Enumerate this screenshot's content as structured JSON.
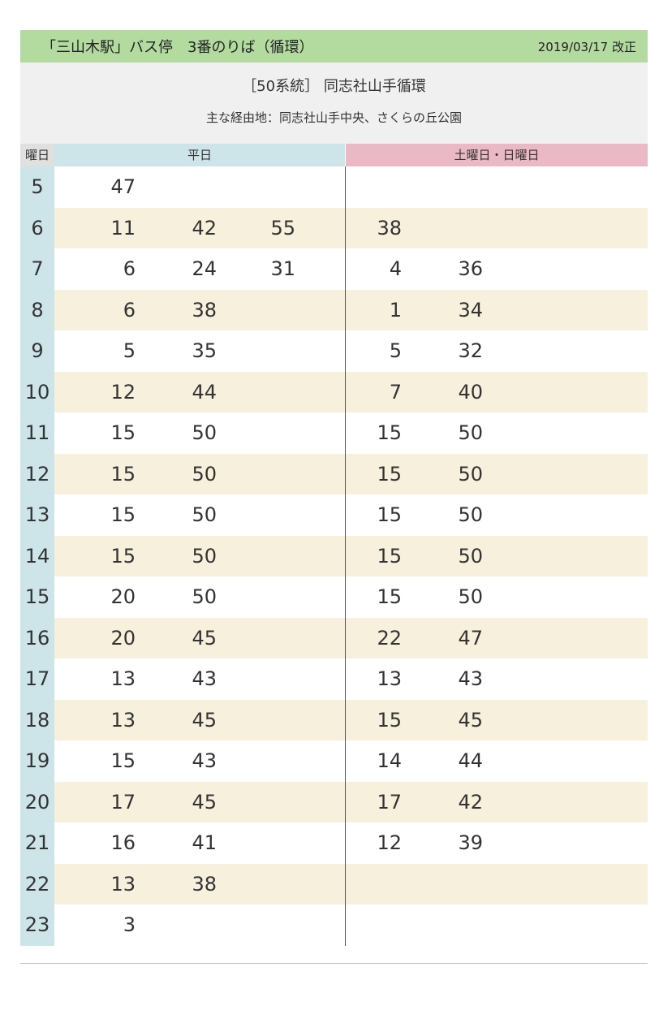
{
  "header": {
    "stop": "「三山木駅」バス停　3番のりば（循環）",
    "revised": "2019/03/17 改正"
  },
  "route": {
    "name": "［50系統］ 同志社山手循環",
    "via": "主な経由地：同志社山手中央、さくらの丘公園"
  },
  "columns": {
    "hour": "曜日",
    "weekday": "平日",
    "holiday": "土曜日・日曜日"
  },
  "rows": [
    {
      "hour": "5",
      "weekday": [
        "47"
      ],
      "holiday": []
    },
    {
      "hour": "6",
      "weekday": [
        "11",
        "42",
        "55"
      ],
      "holiday": [
        "38"
      ]
    },
    {
      "hour": "7",
      "weekday": [
        "6",
        "24",
        "31"
      ],
      "holiday": [
        "4",
        "36"
      ]
    },
    {
      "hour": "8",
      "weekday": [
        "6",
        "38"
      ],
      "holiday": [
        "1",
        "34"
      ]
    },
    {
      "hour": "9",
      "weekday": [
        "5",
        "35"
      ],
      "holiday": [
        "5",
        "32"
      ]
    },
    {
      "hour": "10",
      "weekday": [
        "12",
        "44"
      ],
      "holiday": [
        "7",
        "40"
      ]
    },
    {
      "hour": "11",
      "weekday": [
        "15",
        "50"
      ],
      "holiday": [
        "15",
        "50"
      ]
    },
    {
      "hour": "12",
      "weekday": [
        "15",
        "50"
      ],
      "holiday": [
        "15",
        "50"
      ]
    },
    {
      "hour": "13",
      "weekday": [
        "15",
        "50"
      ],
      "holiday": [
        "15",
        "50"
      ]
    },
    {
      "hour": "14",
      "weekday": [
        "15",
        "50"
      ],
      "holiday": [
        "15",
        "50"
      ]
    },
    {
      "hour": "15",
      "weekday": [
        "20",
        "50"
      ],
      "holiday": [
        "15",
        "50"
      ]
    },
    {
      "hour": "16",
      "weekday": [
        "20",
        "45"
      ],
      "holiday": [
        "22",
        "47"
      ]
    },
    {
      "hour": "17",
      "weekday": [
        "13",
        "43"
      ],
      "holiday": [
        "13",
        "43"
      ]
    },
    {
      "hour": "18",
      "weekday": [
        "13",
        "45"
      ],
      "holiday": [
        "15",
        "45"
      ]
    },
    {
      "hour": "19",
      "weekday": [
        "15",
        "43"
      ],
      "holiday": [
        "14",
        "44"
      ]
    },
    {
      "hour": "20",
      "weekday": [
        "17",
        "45"
      ],
      "holiday": [
        "17",
        "42"
      ]
    },
    {
      "hour": "21",
      "weekday": [
        "16",
        "41"
      ],
      "holiday": [
        "12",
        "39"
      ]
    },
    {
      "hour": "22",
      "weekday": [
        "13",
        "38"
      ],
      "holiday": []
    },
    {
      "hour": "23",
      "weekday": [
        "3"
      ],
      "holiday": []
    }
  ]
}
